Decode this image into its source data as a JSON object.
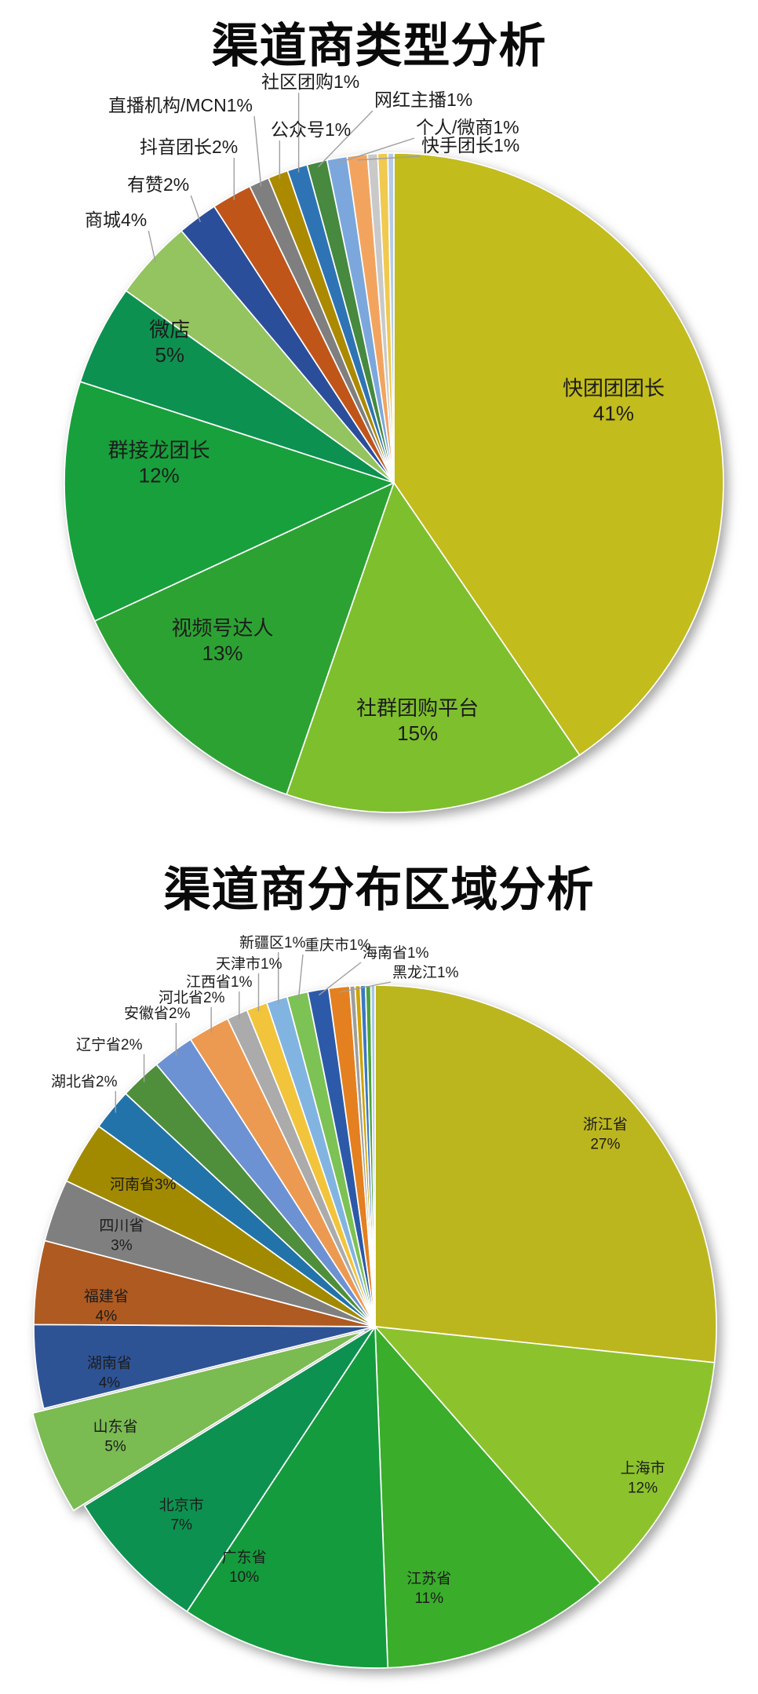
{
  "page": {
    "background": "#ffffff"
  },
  "chart_data": [
    {
      "type": "pie",
      "title": "渠道商类型分析",
      "start_angle_deg": 0,
      "direction": "clockwise",
      "legend_position": "none",
      "label_format": "name+percent",
      "slices": [
        {
          "label": "快团团团长",
          "pct_label": "41%",
          "value": 41,
          "color": "#C2BC1D",
          "label_mode": "inside"
        },
        {
          "label": "社群团购平台",
          "pct_label": "15%",
          "value": 15,
          "color": "#7EBF2D",
          "label_mode": "inside"
        },
        {
          "label": "视频号达人",
          "pct_label": "13%",
          "value": 13,
          "color": "#2CA233",
          "label_mode": "inside"
        },
        {
          "label": "群接龙团长",
          "pct_label": "12%",
          "value": 12,
          "color": "#18A03C",
          "label_mode": "inside"
        },
        {
          "label": "微店",
          "pct_label": "5%",
          "value": 5,
          "color": "#0D9150",
          "label_mode": "inside"
        },
        {
          "label": "商城",
          "pct_label": "4%",
          "value": 4,
          "color": "#93C45F",
          "label_mode": "outside"
        },
        {
          "label": "有赞",
          "pct_label": "2%",
          "value": 2,
          "color": "#2B4E9B",
          "label_mode": "outside"
        },
        {
          "label": "抖音团长",
          "pct_label": "2%",
          "value": 2,
          "color": "#C0551A",
          "label_mode": "outside"
        },
        {
          "label": "直播机构/MCN",
          "pct_label": "1%",
          "value": 1,
          "color": "#7F7F7F",
          "label_mode": "outside"
        },
        {
          "label": "公众号",
          "pct_label": "1%",
          "value": 1,
          "color": "#AC8A00",
          "label_mode": "outside"
        },
        {
          "label": "社区团购",
          "pct_label": "1%",
          "value": 1,
          "color": "#2E74B5",
          "label_mode": "outside"
        },
        {
          "label": "网红主播",
          "pct_label": "1%",
          "value": 1,
          "color": "#46893F",
          "label_mode": "outside"
        },
        {
          "label": "个人/微商",
          "pct_label": "1%",
          "value": 1,
          "color": "#7BA7DC",
          "label_mode": "outside"
        },
        {
          "label": "快手团长",
          "pct_label": "1%",
          "value": 1,
          "color": "#F2A45F",
          "label_mode": "outside"
        },
        {
          "label": "",
          "pct_label": "",
          "value": 0.5,
          "color": "#C9C9C9",
          "label_mode": "none"
        },
        {
          "label": "",
          "pct_label": "",
          "value": 0.5,
          "color": "#F0C94F",
          "label_mode": "none"
        },
        {
          "label": "",
          "pct_label": "",
          "value": 0.3,
          "color": "#B5CBE5",
          "label_mode": "none"
        }
      ]
    },
    {
      "type": "pie",
      "title": "渠道商分布区域分析",
      "start_angle_deg": 0,
      "direction": "clockwise",
      "legend_position": "none",
      "label_format": "name+percent",
      "slices": [
        {
          "label": "浙江省",
          "pct_label": "27%",
          "value": 27,
          "color": "#BCB61E",
          "label_mode": "inside"
        },
        {
          "label": "上海市",
          "pct_label": "12%",
          "value": 12,
          "color": "#8CC32D",
          "label_mode": "inside"
        },
        {
          "label": "江苏省",
          "pct_label": "11%",
          "value": 11,
          "color": "#3AAD2B",
          "label_mode": "inside"
        },
        {
          "label": "广东省",
          "pct_label": "10%",
          "value": 10,
          "color": "#149B3D",
          "label_mode": "inside"
        },
        {
          "label": "北京市",
          "pct_label": "7%",
          "value": 7,
          "color": "#0D9150",
          "label_mode": "inside"
        },
        {
          "label": "山东省",
          "pct_label": "5%",
          "value": 5,
          "color": "#7ABB52",
          "label_mode": "inside",
          "exploded": true
        },
        {
          "label": "湖南省",
          "pct_label": "4%",
          "value": 4,
          "color": "#2E5395",
          "label_mode": "inside"
        },
        {
          "label": "福建省",
          "pct_label": "4%",
          "value": 4,
          "color": "#AE5A21",
          "label_mode": "inside"
        },
        {
          "label": "四川省",
          "pct_label": "3%",
          "value": 3,
          "color": "#7F7F7F",
          "label_mode": "inside"
        },
        {
          "label": "河南省",
          "pct_label": "3%",
          "value": 3,
          "color": "#A28A00",
          "label_mode": "inside"
        },
        {
          "label": "湖北省",
          "pct_label": "2%",
          "value": 2,
          "color": "#2273A9",
          "label_mode": "outside"
        },
        {
          "label": "辽宁省",
          "pct_label": "2%",
          "value": 2,
          "color": "#4F8F3B",
          "label_mode": "outside"
        },
        {
          "label": "安徽省",
          "pct_label": "2%",
          "value": 2,
          "color": "#6D92D3",
          "label_mode": "outside"
        },
        {
          "label": "河北省",
          "pct_label": "2%",
          "value": 2,
          "color": "#EC9A51",
          "label_mode": "outside"
        },
        {
          "label": "江西省",
          "pct_label": "1%",
          "value": 1,
          "color": "#ABABAB",
          "label_mode": "outside"
        },
        {
          "label": "天津市",
          "pct_label": "1%",
          "value": 1,
          "color": "#F2C43B",
          "label_mode": "outside"
        },
        {
          "label": "新疆区",
          "pct_label": "1%",
          "value": 1,
          "color": "#82B4E2",
          "label_mode": "outside"
        },
        {
          "label": "重庆市",
          "pct_label": "1%",
          "value": 1,
          "color": "#7DC254",
          "label_mode": "outside"
        },
        {
          "label": "海南省",
          "pct_label": "1%",
          "value": 1,
          "color": "#2D5AA8",
          "label_mode": "outside"
        },
        {
          "label": "黑龙江",
          "pct_label": "1%",
          "value": 1,
          "color": "#E4801F",
          "label_mode": "outside"
        },
        {
          "label": "",
          "pct_label": "",
          "value": 0.25,
          "color": "#9E9E9E",
          "label_mode": "none"
        },
        {
          "label": "",
          "pct_label": "",
          "value": 0.25,
          "color": "#CFA400",
          "label_mode": "none"
        },
        {
          "label": "",
          "pct_label": "",
          "value": 0.25,
          "color": "#3B78C3",
          "label_mode": "none"
        },
        {
          "label": "",
          "pct_label": "",
          "value": 0.25,
          "color": "#4DA33C",
          "label_mode": "none"
        },
        {
          "label": "",
          "pct_label": "",
          "value": 0.2,
          "color": "#A9C7E6",
          "label_mode": "none"
        }
      ]
    }
  ]
}
